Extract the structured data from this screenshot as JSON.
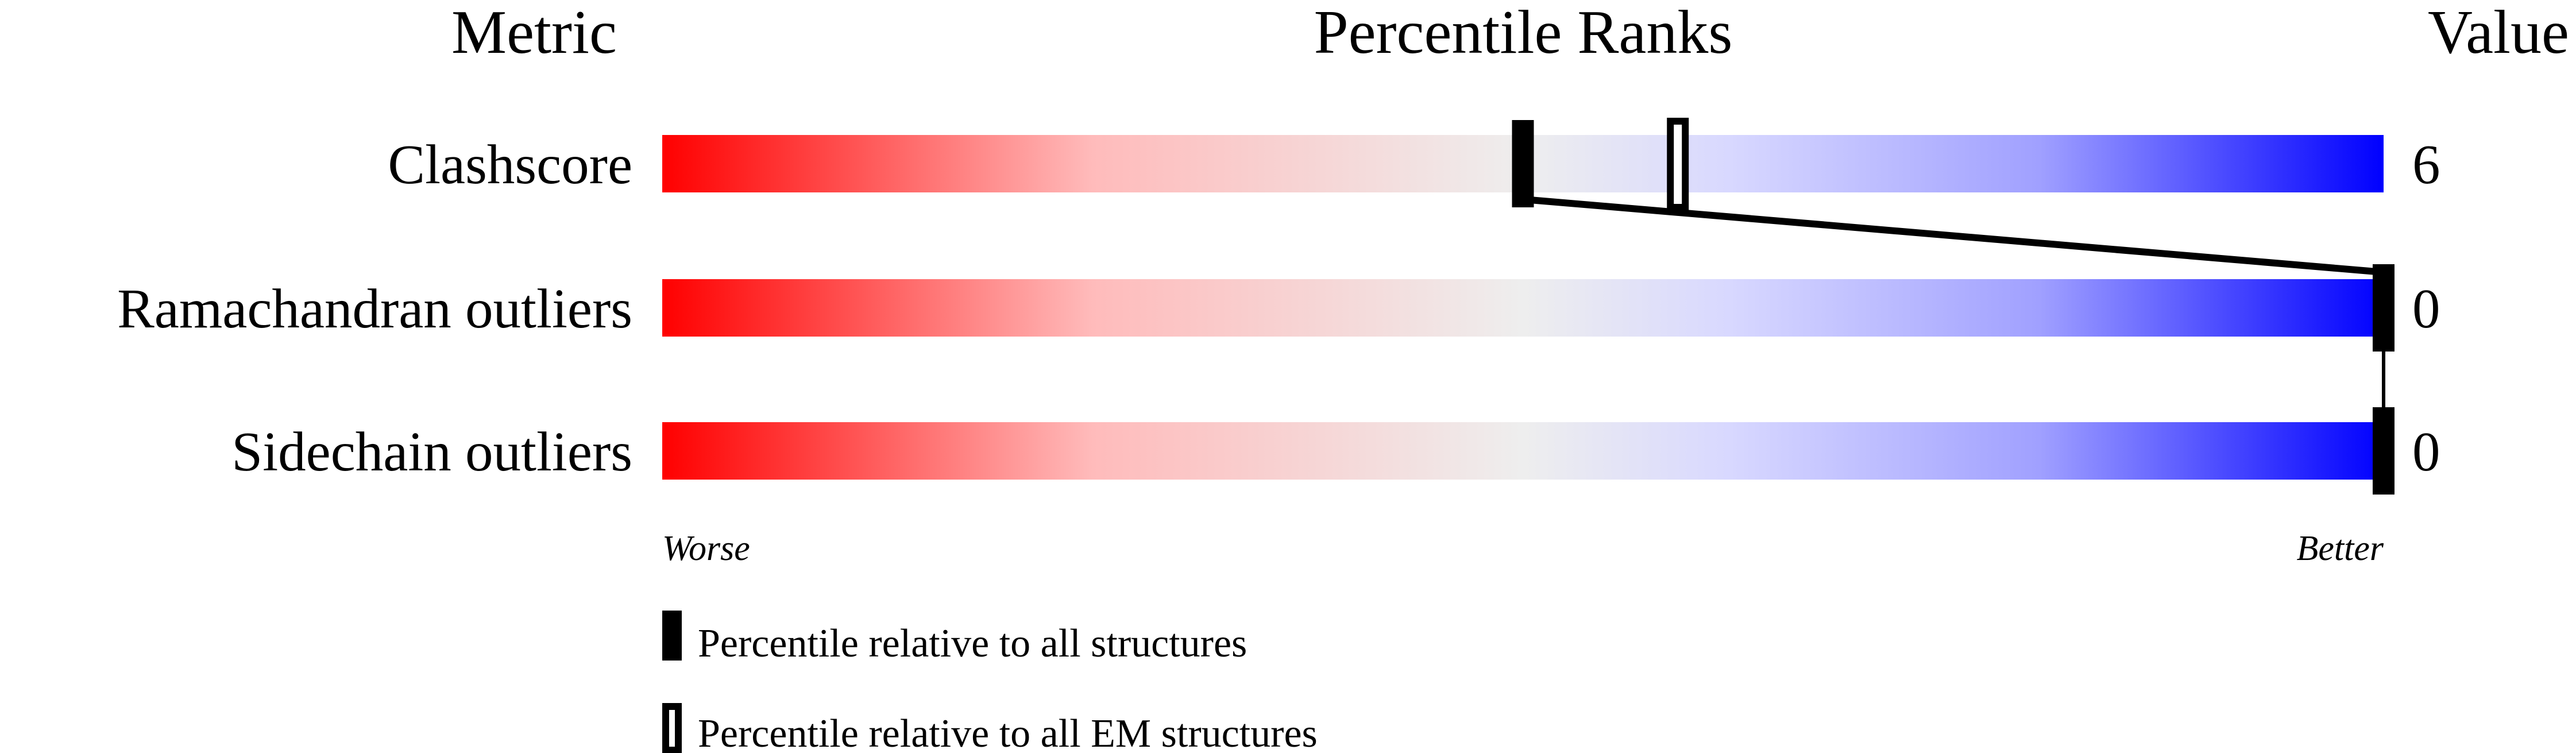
{
  "chart_data": {
    "type": "percentile-bar",
    "headers": {
      "metric": "Metric",
      "ranks": "Percentile Ranks",
      "value": "Value"
    },
    "xlim": [
      0,
      100
    ],
    "axis_labels": {
      "left": "Worse",
      "right": "Better"
    },
    "gradient_colors": [
      "#ff0000",
      "#eeeeee",
      "#d8d8ff",
      "#0000ff"
    ],
    "metrics": [
      {
        "name": "Clashscore",
        "value": "6",
        "percentile_all": 50,
        "percentile_em": 59
      },
      {
        "name": "Ramachandran outliers",
        "value": "0",
        "percentile_all": 100,
        "percentile_em": null
      },
      {
        "name": "Sidechain outliers",
        "value": "0",
        "percentile_all": 100,
        "percentile_em": null
      }
    ],
    "legend": [
      {
        "label": "Percentile relative to all structures",
        "style": "filled"
      },
      {
        "label": "Percentile relative to all EM structures",
        "style": "hollow"
      }
    ]
  }
}
